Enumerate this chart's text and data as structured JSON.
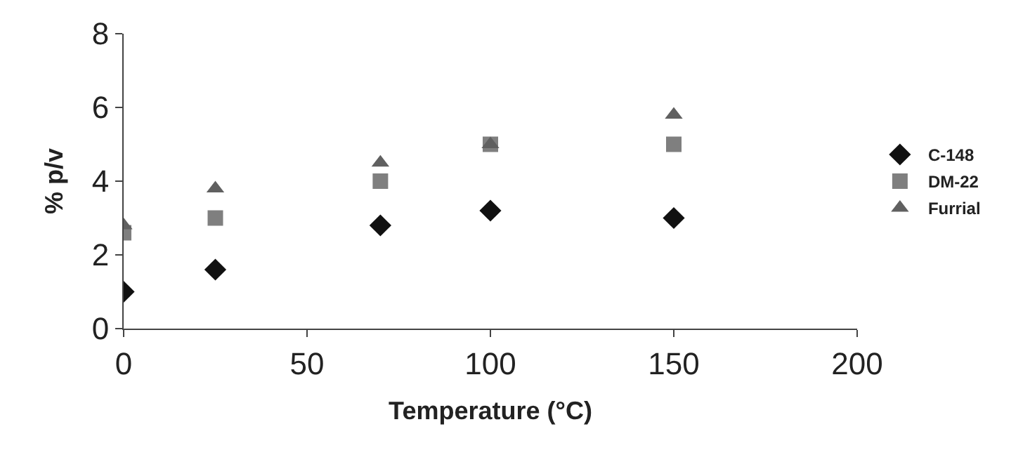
{
  "chart_data": {
    "type": "scatter",
    "xlabel": "Temperature (°C)",
    "ylabel": "% p/v",
    "xlim": [
      0,
      200
    ],
    "xticks": [
      0,
      50,
      100,
      150,
      200
    ],
    "ylim": [
      0,
      8
    ],
    "yticks": [
      0,
      2,
      4,
      6,
      8
    ],
    "legend": "right",
    "series": [
      {
        "name": "C-148",
        "color": "#111111",
        "marker": "diamond",
        "x": [
          0,
          25,
          70,
          100,
          150
        ],
        "values": [
          1.0,
          1.6,
          2.8,
          3.2,
          3.0
        ]
      },
      {
        "name": "DM-22",
        "color": "#7f7f7f",
        "marker": "square",
        "x": [
          0,
          25,
          70,
          100,
          150
        ],
        "values": [
          2.6,
          3.0,
          4.0,
          5.0,
          5.0
        ]
      },
      {
        "name": "Furrial",
        "color": "#606060",
        "marker": "triangle",
        "x": [
          0,
          25,
          70,
          100,
          150
        ],
        "values": [
          2.8,
          3.8,
          4.5,
          5.0,
          5.8
        ]
      }
    ]
  }
}
